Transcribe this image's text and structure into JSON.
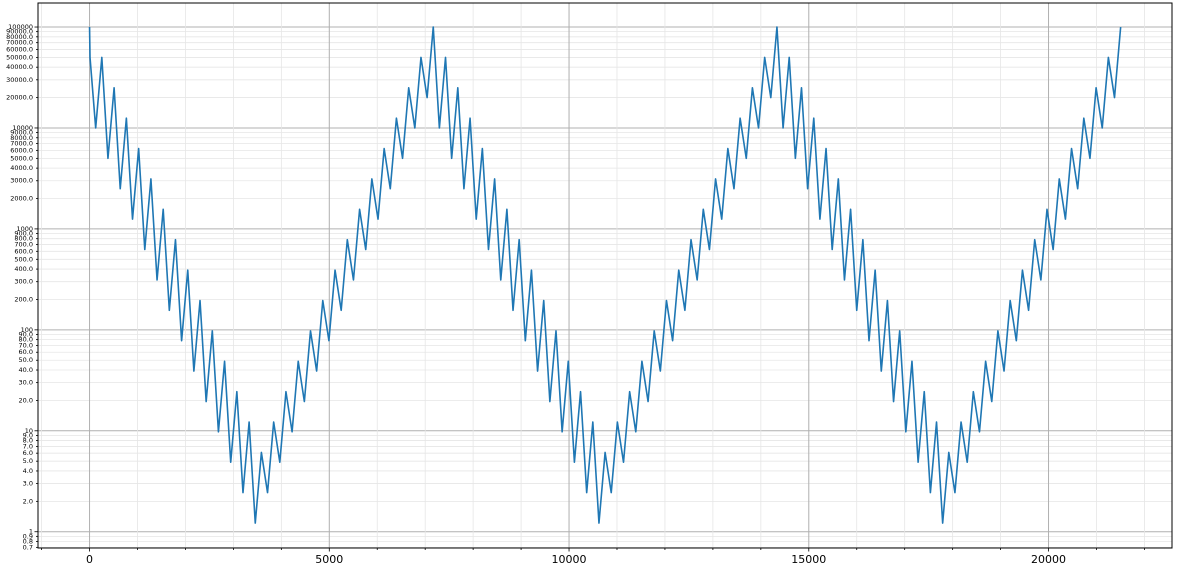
{
  "chart_data": {
    "type": "line",
    "log_y": true,
    "grid": true,
    "xlim": [
      -1075,
      22575
    ],
    "ylim": [
      0.69,
      173000
    ],
    "xticks": [
      0,
      5000,
      10000,
      15000,
      20000
    ],
    "xminorticks": [
      -1000,
      1000,
      2000,
      3000,
      4000,
      6000,
      7000,
      8000,
      9000,
      11000,
      12000,
      13000,
      14000,
      16000,
      17000,
      18000,
      19000,
      21000,
      22000
    ],
    "yticks": [
      0.7,
      0.8,
      0.9,
      1,
      {
        "value": 2,
        "label": "2.0"
      },
      {
        "value": 3,
        "label": "3.0"
      },
      {
        "value": 4,
        "label": "4.0"
      },
      {
        "value": 5,
        "label": "5.0"
      },
      {
        "value": 6,
        "label": "6.0"
      },
      {
        "value": 7,
        "label": "7.0"
      },
      {
        "value": 8,
        "label": "8.0"
      },
      {
        "value": 9,
        "label": "9.0"
      },
      10,
      {
        "value": 20,
        "label": "20.0"
      },
      {
        "value": 30,
        "label": "30.0"
      },
      {
        "value": 40,
        "label": "40.0"
      },
      {
        "value": 50,
        "label": "50.0"
      },
      {
        "value": 60,
        "label": "60.0"
      },
      {
        "value": 70,
        "label": "70.0"
      },
      {
        "value": 80,
        "label": "80.0"
      },
      {
        "value": 90,
        "label": "90.0"
      },
      100,
      {
        "value": 200,
        "label": "200.0"
      },
      {
        "value": 300,
        "label": "300.0"
      },
      {
        "value": 400,
        "label": "400.0"
      },
      {
        "value": 500,
        "label": "500.0"
      },
      {
        "value": 600,
        "label": "600.0"
      },
      {
        "value": 700,
        "label": "700.0"
      },
      {
        "value": 800,
        "label": "800.0"
      },
      {
        "value": 900,
        "label": "900.0"
      },
      1000,
      {
        "value": 2000,
        "label": "2000.0"
      },
      {
        "value": 3000,
        "label": "3000.0"
      },
      {
        "value": 4000,
        "label": "4000.0"
      },
      {
        "value": 5000,
        "label": "5000.0"
      },
      {
        "value": 6000,
        "label": "6000.0"
      },
      {
        "value": 7000,
        "label": "7000.0"
      },
      {
        "value": 8000,
        "label": "8000.0"
      },
      {
        "value": 9000,
        "label": "9000.0"
      },
      10000,
      {
        "value": 20000,
        "label": "20000.0"
      },
      {
        "value": 30000,
        "label": "30000.0"
      },
      {
        "value": 40000,
        "label": "40000.0"
      },
      {
        "value": 50000,
        "label": "50000.0"
      },
      {
        "value": 60000,
        "label": "60000.0"
      },
      {
        "value": 70000,
        "label": "70000.0"
      },
      {
        "value": 80000,
        "label": "80000.0"
      },
      {
        "value": 90000,
        "label": "90000.0"
      },
      100000
    ],
    "x": [
      0,
      10,
      128,
      256,
      384,
      512,
      640,
      768,
      896,
      1024,
      1152,
      1280,
      1408,
      1536,
      1664,
      1792,
      1920,
      2048,
      2176,
      2304,
      2432,
      2560,
      2688,
      2816,
      2944,
      3072,
      3200,
      3328,
      3456,
      3584,
      3712,
      3840,
      3968,
      4096,
      4224,
      4352,
      4480,
      4608,
      4736,
      4864,
      4992,
      5120,
      5248,
      5376,
      5504,
      5632,
      5760,
      5888,
      6016,
      6144,
      6272,
      6400,
      6528,
      6656,
      6784,
      6912,
      7040,
      7168,
      7296,
      7424,
      7552,
      7680,
      7808,
      7936,
      8064,
      8192,
      8320,
      8448,
      8576,
      8704,
      8832,
      8960,
      9088,
      9216,
      9344,
      9472,
      9600,
      9728,
      9856,
      9984,
      10112,
      10240,
      10368,
      10496,
      10624,
      10752,
      10880,
      11008,
      11136,
      11264,
      11392,
      11520,
      11648,
      11776,
      11904,
      12032,
      12160,
      12288,
      12416,
      12544,
      12672,
      12800,
      12928,
      13056,
      13184,
      13312,
      13440,
      13568,
      13696,
      13824,
      13952,
      14080,
      14208,
      14336,
      14464,
      14592,
      14720,
      14848,
      14976,
      15104,
      15232,
      15360,
      15488,
      15616,
      15744,
      15872,
      16000,
      16128,
      16256,
      16384,
      16512,
      16640,
      16768,
      16896,
      17024,
      17152,
      17280,
      17408,
      17536,
      17664,
      17792,
      17920,
      18048,
      18176,
      18304,
      18432,
      18560,
      18688,
      18816,
      18944,
      19072,
      19200,
      19328,
      19456,
      19584,
      19712,
      19840,
      19968,
      20096,
      20224,
      20352,
      20480,
      20608,
      20736,
      20864,
      20992,
      21120,
      21248,
      21376,
      21504
    ],
    "series": [
      {
        "color": "#1f77b4",
        "values": [
          100000,
          50000,
          10000,
          50000,
          5000,
          25000,
          2500,
          12500,
          1250,
          6250,
          625,
          3125,
          312.5,
          1562.5,
          156.25,
          781.25,
          78.1,
          390.6,
          39.1,
          195.3,
          19.5,
          97.7,
          9.77,
          48.8,
          4.88,
          24.4,
          2.44,
          12.2,
          1.22,
          6.1,
          2.44,
          12.2,
          4.88,
          24.4,
          9.77,
          48.8,
          19.5,
          97.7,
          39.1,
          195.3,
          78.1,
          390.6,
          156.25,
          781.25,
          312.5,
          1562.5,
          625,
          3125,
          1250,
          6250,
          2500,
          12500,
          5000,
          25000,
          10000,
          50000,
          20000,
          100000,
          10000,
          50000,
          5000,
          25000,
          2500,
          12500,
          1250,
          6250,
          625,
          3125,
          312.5,
          1562.5,
          156.25,
          781.25,
          78.1,
          390.6,
          39.1,
          195.3,
          19.5,
          97.7,
          9.77,
          48.8,
          4.88,
          24.4,
          2.44,
          12.2,
          1.22,
          6.1,
          2.44,
          12.2,
          4.88,
          24.4,
          9.77,
          48.8,
          19.5,
          97.7,
          39.1,
          195.3,
          78.1,
          390.6,
          156.25,
          781.25,
          312.5,
          1562.5,
          625,
          3125,
          1250,
          6250,
          2500,
          12500,
          5000,
          25000,
          10000,
          50000,
          20000,
          100000,
          10000,
          50000,
          5000,
          25000,
          2500,
          12500,
          1250,
          6250,
          625,
          3125,
          312.5,
          1562.5,
          156.25,
          781.25,
          78.1,
          390.6,
          39.1,
          195.3,
          19.5,
          97.7,
          9.77,
          48.8,
          4.88,
          24.4,
          2.44,
          12.2,
          1.22,
          6.1,
          2.44,
          12.2,
          4.88,
          24.4,
          9.77,
          48.8,
          19.5,
          97.7,
          39.1,
          195.3,
          78.1,
          390.6,
          156.25,
          781.25,
          312.5,
          1562.5,
          625,
          3125,
          1250,
          6250,
          2500,
          12500,
          5000,
          25000,
          10000,
          50000,
          20000,
          100000
        ]
      }
    ]
  }
}
